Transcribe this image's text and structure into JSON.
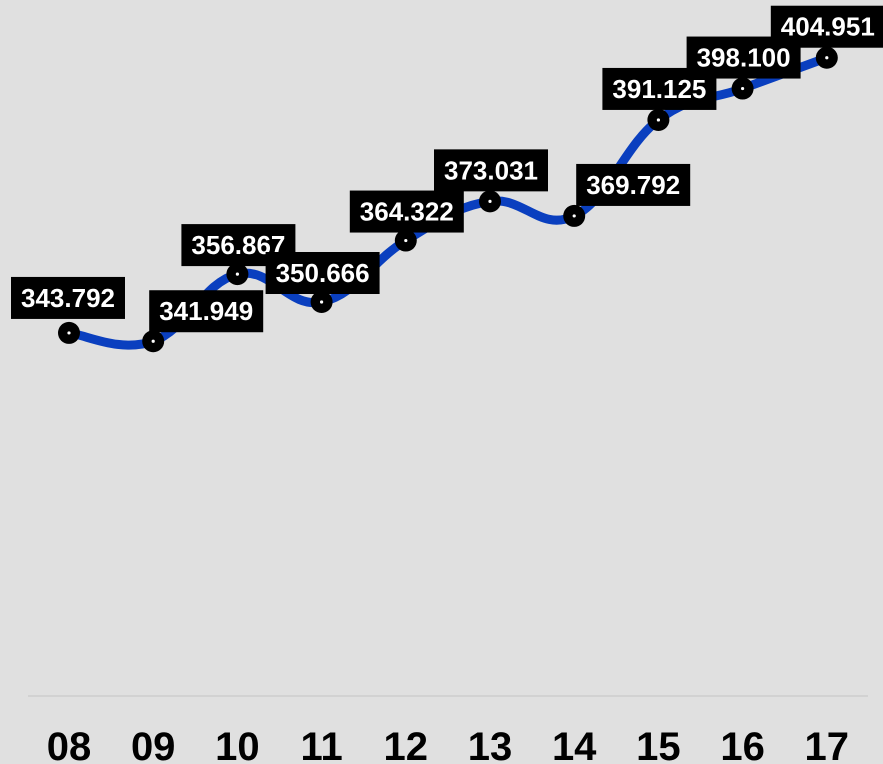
{
  "chart_data": {
    "type": "line",
    "title": "",
    "xlabel": "",
    "ylabel": "",
    "categories": [
      "08",
      "09",
      "10",
      "11",
      "12",
      "13",
      "14",
      "15",
      "16",
      "17"
    ],
    "series": [
      {
        "values": [
          343.792,
          341.949,
          356.867,
          350.666,
          364.322,
          373.031,
          369.792,
          391.125,
          398.1,
          404.951
        ]
      }
    ],
    "data_labels": [
      "343.792",
      "341.949",
      "356.867",
      "350.666",
      "364.322",
      "373.031",
      "369.792",
      "391.125",
      "398.100",
      "404.951"
    ],
    "ylim": [
      260,
      410
    ],
    "grid": false,
    "smooth": true,
    "y_axis_visible": false,
    "colors": {
      "background": "#e0e0e0",
      "line": "#0a3fbf",
      "marker": "#000000",
      "label_bg": "#000000",
      "label_text": "#ffffff",
      "baseline": "#d2d2d2"
    }
  }
}
